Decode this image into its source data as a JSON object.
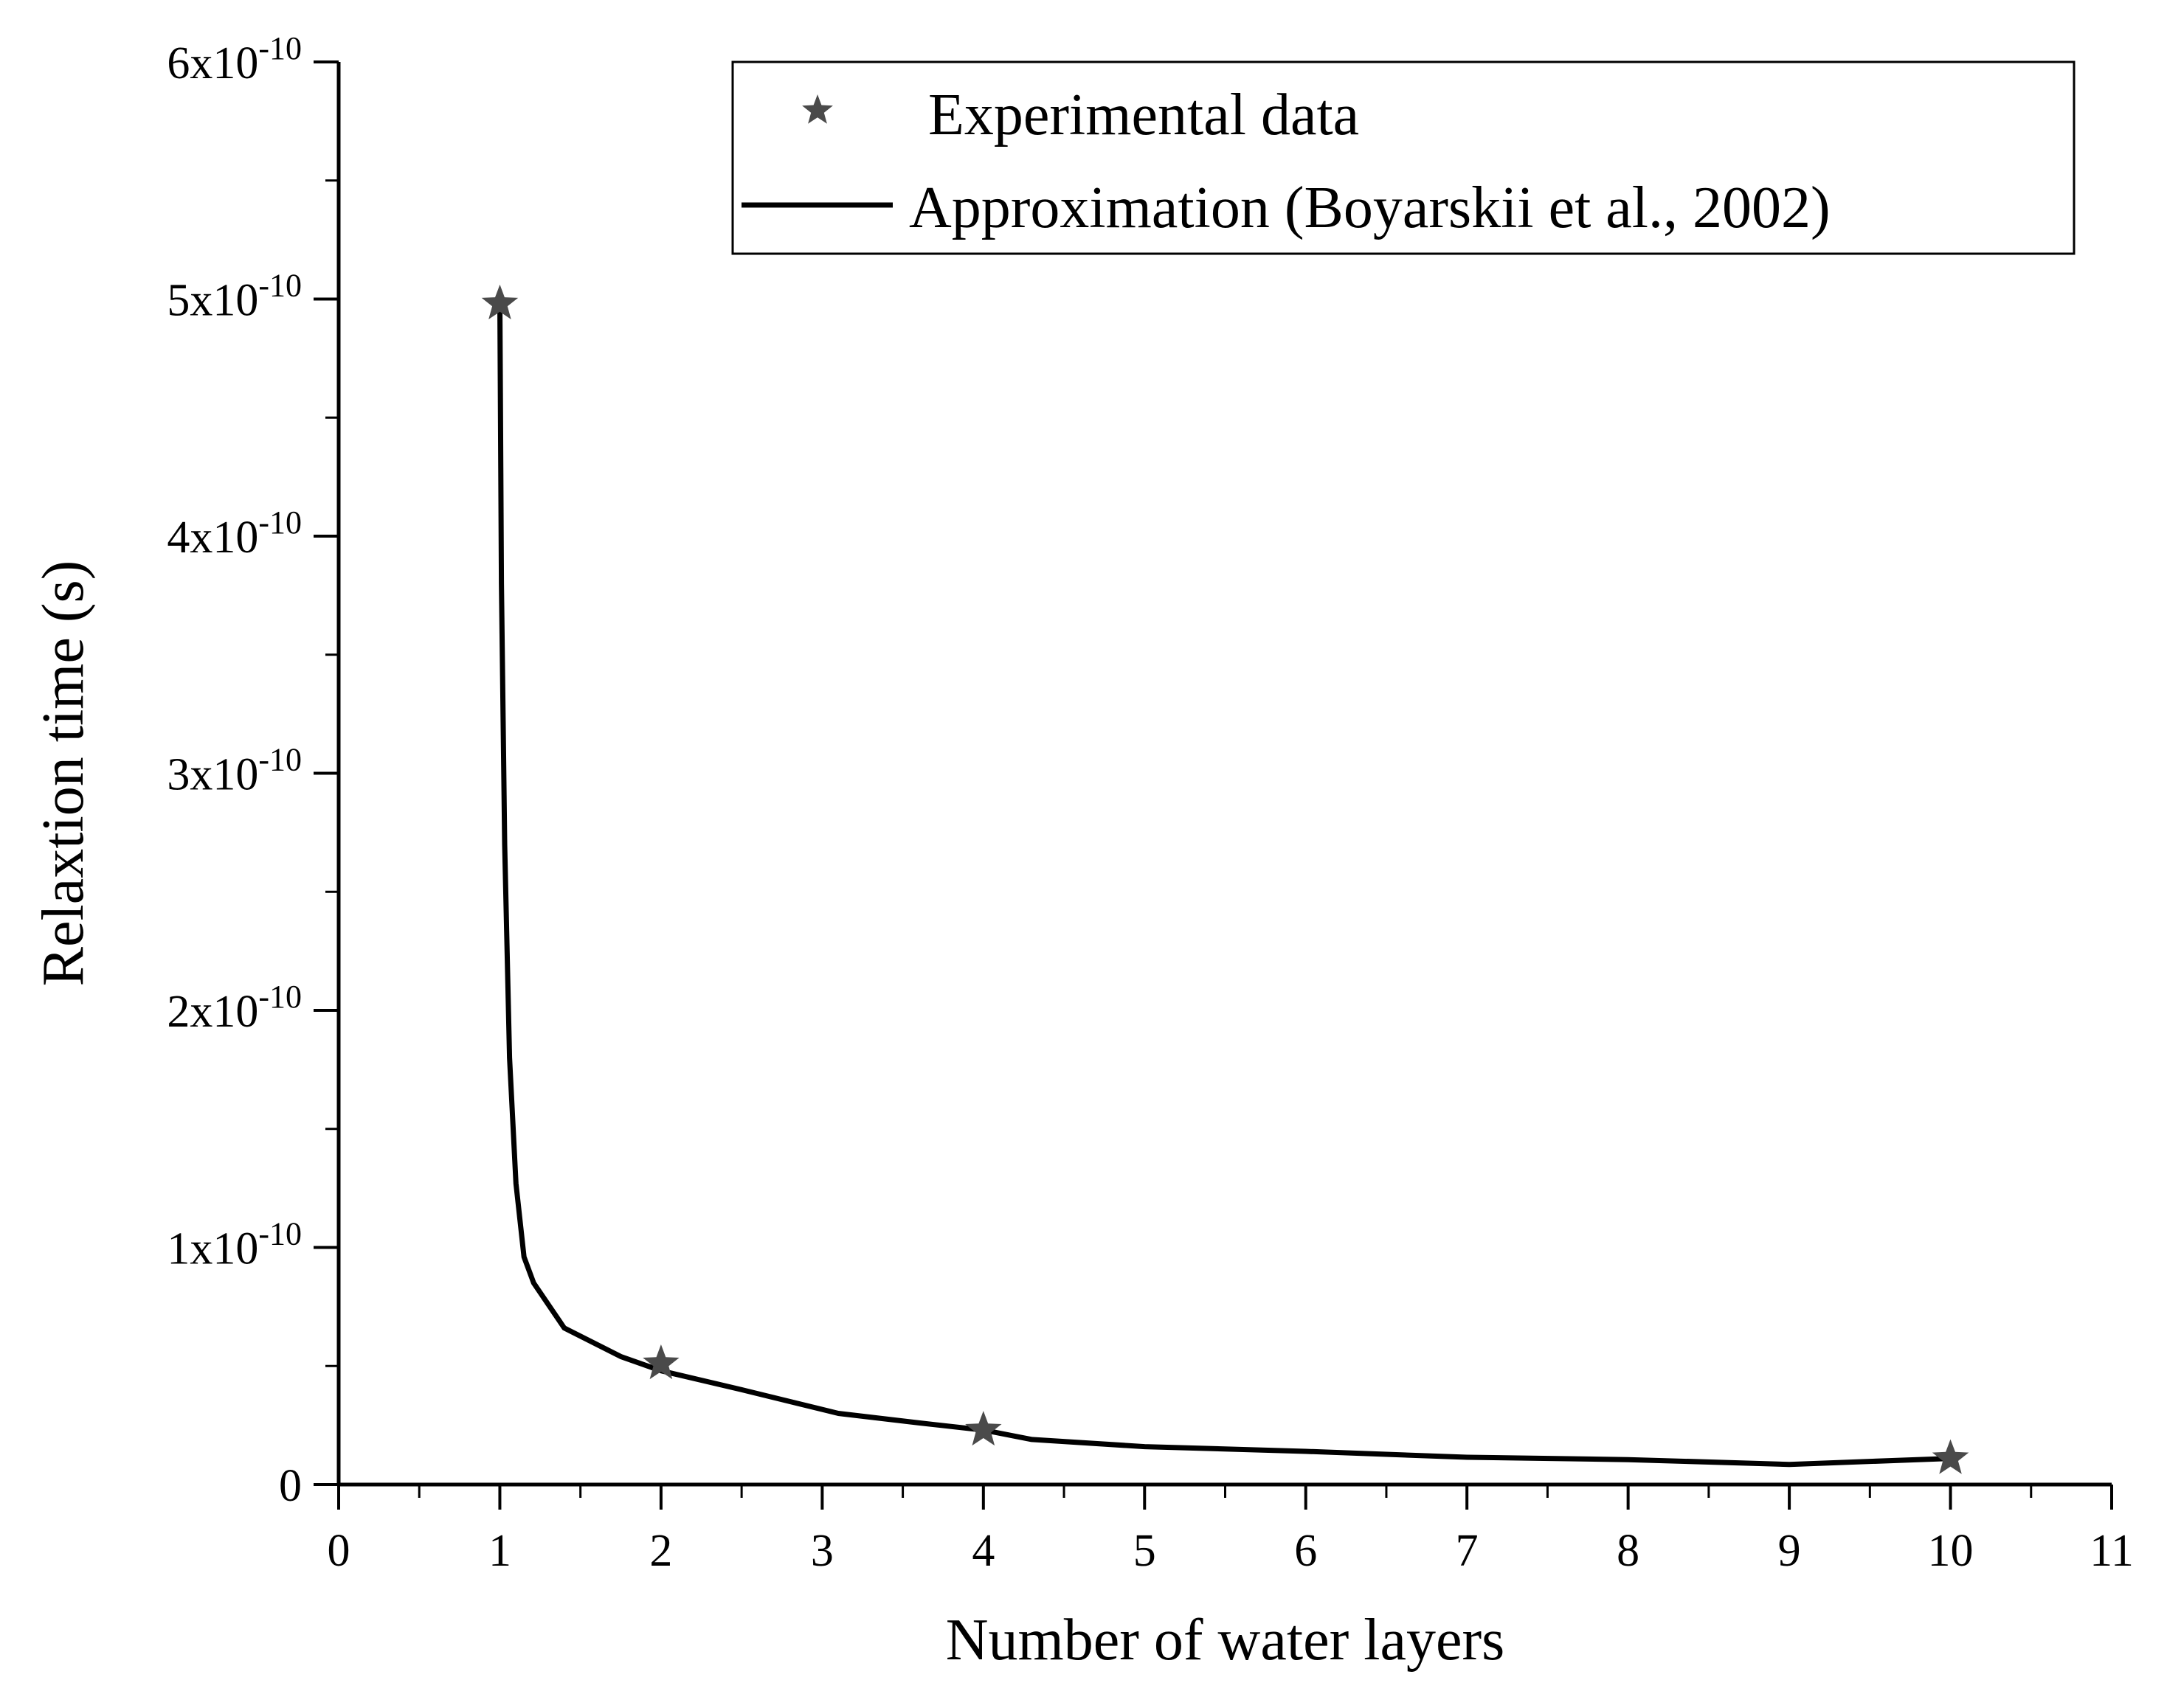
{
  "chart_data": {
    "type": "scatter",
    "title": "",
    "xlabel": "Number of water layers",
    "ylabel": "Relaxtion time (s)",
    "xlim": [
      0,
      11
    ],
    "ylim": [
      0,
      6e-10
    ],
    "x_ticks": [
      0,
      1,
      2,
      3,
      4,
      5,
      6,
      7,
      8,
      9,
      10,
      11
    ],
    "x_tick_labels": [
      "0",
      "1",
      "2",
      "3",
      "4",
      "5",
      "6",
      "7",
      "8",
      "9",
      "10",
      "11"
    ],
    "y_ticks": [
      0,
      1e-10,
      2e-10,
      3e-10,
      4e-10,
      5e-10,
      6e-10
    ],
    "y_tick_labels": [
      {
        "text": "0",
        "mantissa": "",
        "exponent": ""
      },
      {
        "text": "",
        "mantissa": "1x10",
        "exponent": "-10"
      },
      {
        "text": "",
        "mantissa": "2x10",
        "exponent": "-10"
      },
      {
        "text": "",
        "mantissa": "3x10",
        "exponent": "-10"
      },
      {
        "text": "",
        "mantissa": "4x10",
        "exponent": "-10"
      },
      {
        "text": "",
        "mantissa": "5x10",
        "exponent": "-10"
      },
      {
        "text": "",
        "mantissa": "6x10",
        "exponent": "-10"
      }
    ],
    "grid": false,
    "legend_position": "top-right",
    "series": [
      {
        "name": "Experimental data",
        "kind": "scatter",
        "marker": "star",
        "color": "#4a4a4a",
        "x": [
          1,
          2,
          4,
          10
        ],
        "y": [
          4.98e-10,
          5.1e-11,
          2.3e-11,
          1.1e-11
        ]
      },
      {
        "name": "Approximation (Boyarskii et al., 2002)",
        "kind": "line",
        "color": "#000000",
        "x": [
          1.0,
          1.01,
          1.03,
          1.06,
          1.1,
          1.15,
          1.21,
          1.4,
          1.75,
          2.0,
          2.5,
          3.1,
          3.6,
          4.0,
          4.3,
          5.0,
          6.0,
          7.0,
          8.0,
          9.0,
          10.0
        ],
        "y": [
          4.98e-10,
          3.8e-10,
          2.7e-10,
          1.8e-10,
          1.27e-10,
          9.6e-11,
          8.5e-11,
          6.6e-11,
          5.4e-11,
          4.8e-11,
          4e-11,
          3e-11,
          2.6e-11,
          2.3e-11,
          1.9e-11,
          1.6e-11,
          1.4e-11,
          1.15e-11,
          1.05e-11,
          8.5e-12,
          1.1e-11
        ]
      }
    ]
  }
}
